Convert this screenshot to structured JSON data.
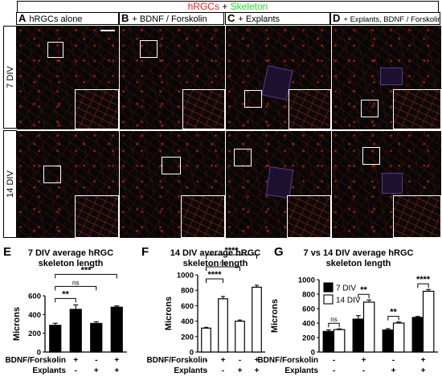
{
  "figure_title": {
    "part1": "hRGCs",
    "plus": " + ",
    "part2": "Skeleton"
  },
  "colors": {
    "hrgc": "#ff1a1a",
    "skeleton": "#19e619",
    "axis": "#000000",
    "bar_fill": "#000000",
    "bar_open": "#ffffff",
    "inset_border": "#ffffff"
  },
  "micrograph_panels": [
    {
      "letter": "A",
      "title": "hRGCs alone"
    },
    {
      "letter": "B",
      "title": "+ BDNF / Forskolin"
    },
    {
      "letter": "C",
      "title": "+ Explants"
    },
    {
      "letter": "D",
      "title": "+ Explants, BDNF / Forskolin"
    }
  ],
  "row_labels": [
    "7 DIV",
    "14 DIV"
  ],
  "chart_data": [
    {
      "panel": "E",
      "type": "bar",
      "title": "7 DIV average hRGC skeleton length",
      "ylabel": "Microns",
      "ylim": [
        0,
        600
      ],
      "yticks": [
        0,
        200,
        400,
        600
      ],
      "bar_style": "filled",
      "values": [
        285,
        455,
        305,
        478
      ],
      "errors": [
        22,
        48,
        18,
        14
      ],
      "factors": [
        {
          "name": "BDNF/Forskolin",
          "levels": [
            "-",
            "+",
            "-",
            "+"
          ]
        },
        {
          "name": "Explants",
          "levels": [
            "-",
            "-",
            "+",
            "+"
          ]
        }
      ],
      "comparisons": [
        {
          "from": 0,
          "to": 1,
          "label": "**"
        },
        {
          "from": 0,
          "to": 2,
          "label": "ns"
        },
        {
          "from": 0,
          "to": 3,
          "label": "***"
        }
      ]
    },
    {
      "panel": "F",
      "type": "bar",
      "title": "14 DIV average hRGC skeleton length",
      "ylabel": "Microns",
      "ylim": [
        0,
        1000
      ],
      "yticks": [
        0,
        200,
        400,
        600,
        800,
        1000
      ],
      "bar_style": "open",
      "values": [
        310,
        690,
        400,
        840
      ],
      "errors": [
        10,
        30,
        15,
        25
      ],
      "factors": [
        {
          "name": "BDNF/Forskolin",
          "levels": [
            "-",
            "+",
            "-",
            "+"
          ]
        },
        {
          "name": "Explants",
          "levels": [
            "-",
            "-",
            "+",
            "+"
          ]
        }
      ],
      "comparisons": [
        {
          "from": 0,
          "to": 1,
          "label": "****"
        },
        {
          "from": 0,
          "to": 2,
          "label": "ns"
        },
        {
          "from": 0,
          "to": 3,
          "label": "****"
        }
      ]
    },
    {
      "panel": "G",
      "type": "bar",
      "title": "7 vs 14 DIV average hRGC skeleton length",
      "ylabel": "Microns",
      "ylim": [
        0,
        1000
      ],
      "yticks": [
        0,
        200,
        400,
        600,
        800,
        1000
      ],
      "legend": "top-left",
      "series": [
        {
          "name": "7 DIV",
          "style": "filled",
          "values": [
            285,
            455,
            305,
            478
          ],
          "errors": [
            22,
            48,
            18,
            14
          ]
        },
        {
          "name": "14 DIV",
          "style": "open",
          "values": [
            310,
            690,
            400,
            840
          ],
          "errors": [
            10,
            30,
            15,
            25
          ]
        }
      ],
      "factors": [
        {
          "name": "BDNF/Forskolin",
          "levels": [
            "-",
            "+",
            "-",
            "+"
          ]
        },
        {
          "name": "Explants",
          "levels": [
            "-",
            "-",
            "+",
            "+"
          ]
        }
      ],
      "comparisons": [
        {
          "group": 0,
          "label": "ns"
        },
        {
          "group": 1,
          "label": "**"
        },
        {
          "group": 2,
          "label": "**"
        },
        {
          "group": 3,
          "label": "****"
        }
      ]
    }
  ]
}
